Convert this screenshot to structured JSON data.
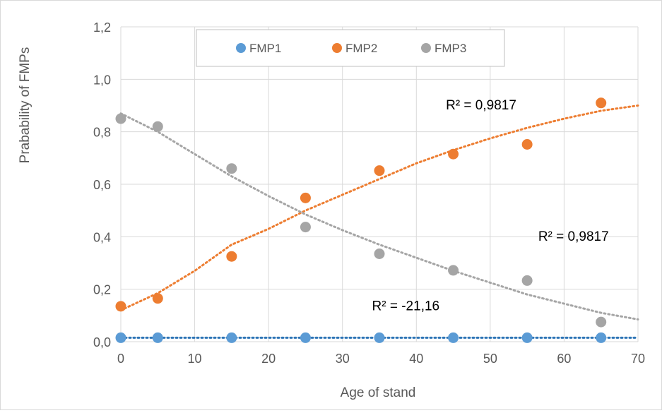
{
  "chart_data": {
    "type": "scatter",
    "title": "",
    "xlabel": "Age of stand",
    "ylabel": "Prabability of FMPs",
    "xlim": [
      0,
      70
    ],
    "ylim": [
      0,
      1.2
    ],
    "x_ticks": [
      "0",
      "10",
      "20",
      "30",
      "40",
      "50",
      "60",
      "70"
    ],
    "y_ticks": [
      "0,0",
      "0,2",
      "0,4",
      "0,6",
      "0,8",
      "1,0",
      "1,2"
    ],
    "grid": true,
    "legend_position": "top",
    "series": [
      {
        "name": "FMP1",
        "color": "#5b9bd5",
        "x": [
          0,
          5,
          15,
          25,
          35,
          45,
          55,
          65
        ],
        "y": [
          0.015,
          0.015,
          0.015,
          0.015,
          0.015,
          0.015,
          0.015,
          0.015
        ],
        "trendline": {
          "x": [
            0,
            70
          ],
          "y": [
            0.015,
            0.015
          ],
          "color": "#2e75b6"
        },
        "r2_label": "R² = -21,16"
      },
      {
        "name": "FMP2",
        "color": "#ed7d31",
        "x": [
          0,
          5,
          15,
          25,
          35,
          45,
          55,
          65
        ],
        "y": [
          0.135,
          0.165,
          0.325,
          0.548,
          0.652,
          0.715,
          0.752,
          0.91
        ],
        "trendline": {
          "x": [
            0,
            5,
            10,
            15,
            20,
            25,
            30,
            35,
            40,
            45,
            50,
            55,
            60,
            65,
            70
          ],
          "y": [
            0.12,
            0.185,
            0.27,
            0.37,
            0.43,
            0.5,
            0.56,
            0.62,
            0.68,
            0.73,
            0.775,
            0.815,
            0.85,
            0.88,
            0.9
          ],
          "color": "#ed7d31"
        },
        "r2_label": "R² = 0,9817"
      },
      {
        "name": "FMP3",
        "color": "#a5a5a5",
        "x": [
          0,
          5,
          15,
          25,
          35,
          45,
          55,
          65
        ],
        "y": [
          0.85,
          0.82,
          0.66,
          0.437,
          0.335,
          0.272,
          0.233,
          0.075
        ],
        "trendline": {
          "x": [
            0,
            5,
            10,
            15,
            20,
            25,
            30,
            35,
            40,
            45,
            50,
            55,
            60,
            65,
            70
          ],
          "y": [
            0.87,
            0.8,
            0.715,
            0.63,
            0.555,
            0.485,
            0.425,
            0.37,
            0.32,
            0.27,
            0.225,
            0.18,
            0.145,
            0.11,
            0.085
          ],
          "color": "#a5a5a5"
        },
        "r2_label": "R² = 0,9817"
      }
    ],
    "r2_annotations": [
      {
        "text": "R² = 0,9817",
        "x": 44,
        "y": 0.885
      },
      {
        "text": "R² = 0,9817",
        "x": 56.5,
        "y": 0.385
      },
      {
        "text": "R² = -21,16",
        "x": 34,
        "y": 0.12
      }
    ]
  }
}
